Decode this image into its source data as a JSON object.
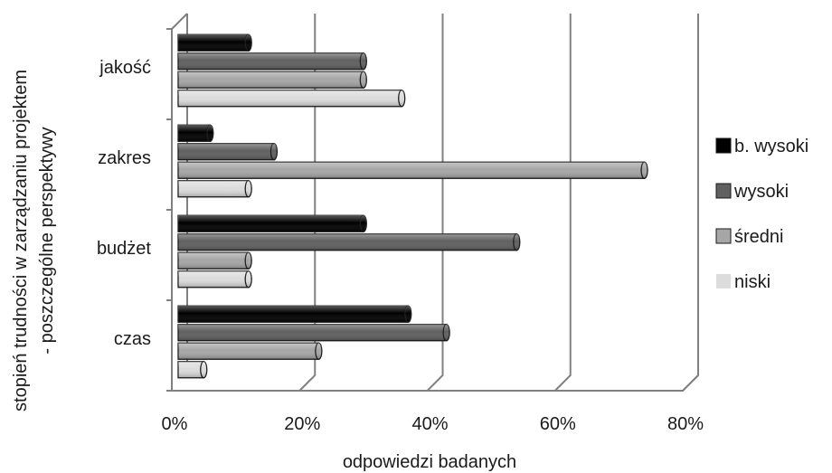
{
  "chart_data": {
    "type": "bar",
    "orientation": "horizontal",
    "style": "3d-cylinder",
    "categories": [
      "jakość",
      "zakres",
      "budżet",
      "czas"
    ],
    "series": [
      {
        "name": "b. wysoki",
        "color": "#000000",
        "values": [
          11,
          5,
          29,
          36
        ]
      },
      {
        "name": "wysoki",
        "color": "#606060",
        "values": [
          29,
          15,
          53,
          42
        ]
      },
      {
        "name": "średni",
        "color": "#a6a6a6",
        "values": [
          29,
          73,
          11,
          22
        ]
      },
      {
        "name": "niski",
        "color": "#dcdcdc",
        "values": [
          35,
          11,
          11,
          4
        ]
      }
    ],
    "xlim": [
      0,
      80
    ],
    "xticks": [
      "0%",
      "20%",
      "40%",
      "60%",
      "80%"
    ],
    "xlabel": "odpowiedzi badanych",
    "ylabel_line1": "stopień trudności w zarządzaniu projektem",
    "ylabel_line2": "- poszczególne perspektywy",
    "grid": true,
    "legend_position": "right"
  }
}
